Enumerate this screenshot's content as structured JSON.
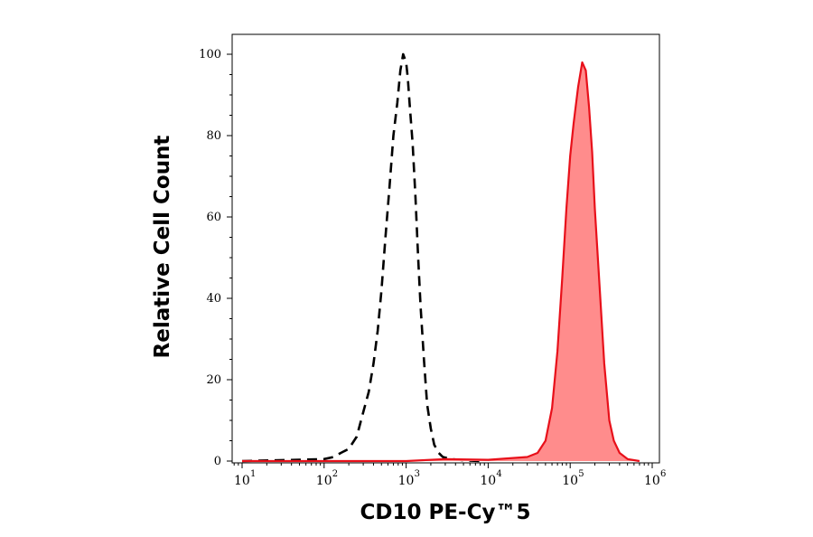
{
  "chart_data": {
    "type": "area",
    "xlabel": "CD10 PE-Cy™5",
    "ylabel": "Relative Cell Count",
    "x_scale": "log",
    "xlim": [
      5,
      1000000
    ],
    "ylim": [
      0,
      100
    ],
    "yticks": [
      0,
      20,
      40,
      60,
      80,
      100
    ],
    "xticks": [
      {
        "value": 10,
        "base": "10",
        "exp": "1"
      },
      {
        "value": 100,
        "base": "10",
        "exp": "2"
      },
      {
        "value": 1000,
        "base": "10",
        "exp": "3"
      },
      {
        "value": 10000,
        "base": "10",
        "exp": "4"
      },
      {
        "value": 100000,
        "base": "10",
        "exp": "5"
      },
      {
        "value": 1000000,
        "base": "10",
        "exp": "6"
      }
    ],
    "grid": false,
    "series": [
      {
        "style": "dashed-line",
        "color": "#000000",
        "x": [
          10,
          50,
          100,
          130,
          160,
          200,
          250,
          300,
          350,
          400,
          450,
          500,
          560,
          630,
          700,
          780,
          850,
          920,
          1000,
          1050,
          1100,
          1200,
          1300,
          1400,
          1500,
          1650,
          1800,
          2000,
          2200,
          2500,
          2800,
          3500,
          5000,
          8000
        ],
        "y": [
          0,
          0.3,
          0.5,
          1,
          2,
          3,
          6,
          12,
          17,
          24,
          32,
          42,
          55,
          68,
          80,
          88,
          96,
          100,
          98,
          94,
          88,
          78,
          65,
          50,
          38,
          25,
          14,
          8,
          4,
          2,
          1,
          0.5,
          0.2,
          0
        ]
      },
      {
        "style": "filled-area",
        "color": "#e8101a",
        "fill": "#ff8c8c",
        "x": [
          10,
          1000,
          3000,
          10000,
          30000,
          40000,
          50000,
          60000,
          70000,
          80000,
          90000,
          100000,
          110000,
          125000,
          140000,
          155000,
          170000,
          185000,
          200000,
          230000,
          260000,
          300000,
          340000,
          400000,
          500000,
          700000
        ],
        "y": [
          0,
          0,
          0.5,
          0.3,
          1,
          2,
          5,
          13,
          27,
          45,
          62,
          75,
          83,
          92,
          98,
          96,
          87,
          76,
          62,
          42,
          24,
          10,
          5,
          2,
          0.5,
          0
        ]
      }
    ]
  }
}
